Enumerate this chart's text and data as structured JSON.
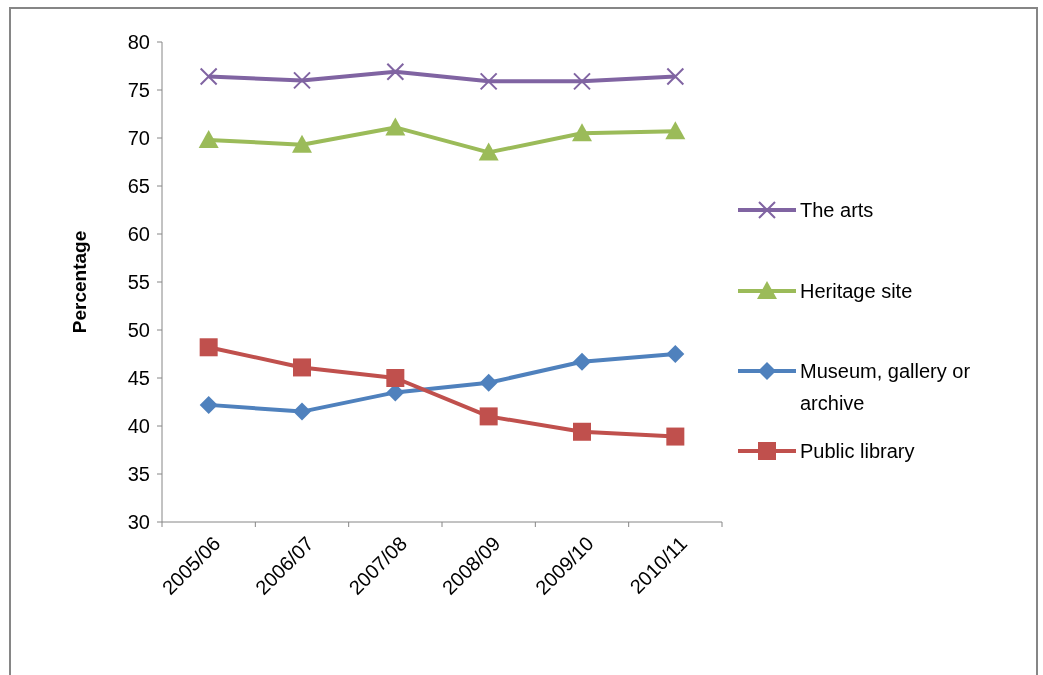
{
  "chart_data": {
    "type": "line",
    "ylabel": "Percentage",
    "categories": [
      "2005/06",
      "2006/07",
      "2007/08",
      "2008/09",
      "2009/10",
      "2010/11"
    ],
    "ylim": [
      30,
      80
    ],
    "yticks": [
      30,
      35,
      40,
      45,
      50,
      55,
      60,
      65,
      70,
      75,
      80
    ],
    "grid": false,
    "legend": "right",
    "series": [
      {
        "name": "The arts",
        "color": "#8064a2",
        "marker": "cross",
        "values": [
          76.4,
          76.0,
          76.9,
          75.9,
          75.9,
          76.4
        ]
      },
      {
        "name": "Heritage site",
        "color": "#9bbb59",
        "marker": "triangle",
        "values": [
          69.8,
          69.3,
          71.1,
          68.5,
          70.5,
          70.7
        ]
      },
      {
        "name": "Museum, gallery or archive",
        "color": "#4f81bd",
        "marker": "diamond",
        "values": [
          42.2,
          41.5,
          43.5,
          44.5,
          46.7,
          47.5
        ]
      },
      {
        "name": "Public library",
        "color": "#c0504d",
        "marker": "square",
        "values": [
          48.2,
          46.1,
          45.0,
          41.0,
          39.4,
          38.9
        ]
      }
    ]
  }
}
